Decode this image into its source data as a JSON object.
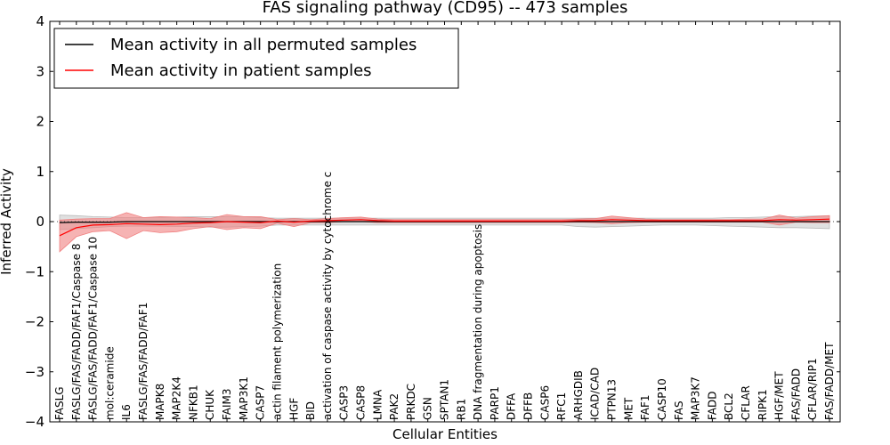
{
  "chart_data": {
    "type": "line",
    "title": "FAS signaling pathway (CD95) -- 473 samples",
    "xlabel": "Cellular Entities",
    "ylabel": "Inferred Activity",
    "ylim": [
      -4,
      4
    ],
    "yticks": [
      "4",
      "3",
      "2",
      "1",
      "0",
      "−1",
      "−2",
      "−3",
      "−4"
    ],
    "ytick_values": [
      4,
      3,
      2,
      1,
      0,
      -1,
      -2,
      -3,
      -4
    ],
    "legend_position": "top-left",
    "categories": [
      "FASLG",
      "FASLG/FAS/FADD/FAF1/Caspase 8",
      "FASLG/FAS/FADD/FAF1/Caspase 10",
      "mol:ceramide",
      "IL6",
      "FASLG/FAS/FADD/FAF1",
      "MAPK8",
      "MAP2K4",
      "NFKB1",
      "CHUK",
      "FAIM3",
      "MAP3K1",
      "CASP7",
      "actin filament polymerization",
      "HGF",
      "BID",
      "activation of caspase activity by cytochrome c",
      "CASP3",
      "CASP8",
      "LMNA",
      "PAK2",
      "PRKDC",
      "GSN",
      "SPTAN1",
      "RB1",
      "DNA fragmentation during apoptosis",
      "PARP1",
      "DFFA",
      "DFFB",
      "CASP6",
      "RFC1",
      "ARHGDIB",
      "ICAD/CAD",
      "PTPN13",
      "MET",
      "FAF1",
      "CASP10",
      "FAS",
      "MAP3K7",
      "FADD",
      "BCL2",
      "CFLAR",
      "RIPK1",
      "HGF/MET",
      "FAS/FADD",
      "CFLAR/RIP1",
      "FAS/FADD/MET"
    ],
    "series": [
      {
        "name": "Mean activity in all permuted samples",
        "color": "#000000",
        "band_color": "#bbbbbb",
        "values": [
          -0.02,
          -0.01,
          -0.01,
          -0.01,
          0,
          0,
          0,
          0,
          0,
          0,
          0,
          0,
          0,
          0,
          0,
          0,
          0,
          0,
          0,
          0,
          0,
          0,
          0,
          0,
          0,
          0,
          0,
          0,
          0,
          0,
          0,
          0,
          0,
          0,
          0,
          0,
          0,
          0,
          0,
          0,
          0,
          0,
          0,
          0,
          0,
          0,
          0
        ],
        "upper": [
          0.13,
          0.12,
          0.1,
          0.09,
          0.08,
          0.08,
          0.08,
          0.09,
          0.1,
          0.1,
          0.1,
          0.1,
          0.08,
          0.07,
          0.07,
          0.07,
          0.07,
          0.07,
          0.07,
          0.07,
          0.07,
          0.07,
          0.07,
          0.07,
          0.07,
          0.07,
          0.07,
          0.07,
          0.07,
          0.07,
          0.07,
          0.07,
          0.07,
          0.07,
          0.07,
          0.07,
          0.07,
          0.07,
          0.07,
          0.07,
          0.08,
          0.08,
          0.09,
          0.1,
          0.1,
          0.11,
          0.12
        ],
        "lower": [
          -0.16,
          -0.14,
          -0.12,
          -0.1,
          -0.09,
          -0.09,
          -0.09,
          -0.1,
          -0.1,
          -0.11,
          -0.11,
          -0.1,
          -0.09,
          -0.07,
          -0.07,
          -0.07,
          -0.07,
          -0.07,
          -0.07,
          -0.07,
          -0.07,
          -0.07,
          -0.07,
          -0.07,
          -0.07,
          -0.07,
          -0.07,
          -0.07,
          -0.07,
          -0.07,
          -0.07,
          -0.1,
          -0.11,
          -0.1,
          -0.09,
          -0.08,
          -0.07,
          -0.07,
          -0.07,
          -0.08,
          -0.09,
          -0.1,
          -0.11,
          -0.12,
          -0.12,
          -0.13,
          -0.14
        ]
      },
      {
        "name": "Mean activity in patient samples",
        "color": "#ff0000",
        "band_color": "#f08080",
        "values": [
          -0.28,
          -0.12,
          -0.07,
          -0.06,
          -0.04,
          -0.05,
          -0.06,
          -0.05,
          -0.03,
          -0.02,
          0,
          -0.01,
          -0.02,
          0.01,
          -0.01,
          0.01,
          0.02,
          0.03,
          0.04,
          0.02,
          0.01,
          0.01,
          0.01,
          0.01,
          0.01,
          0.01,
          0.01,
          0.01,
          0.01,
          0.01,
          0.01,
          0.02,
          0.02,
          0.04,
          0.03,
          0.02,
          0.02,
          0.02,
          0.02,
          0.02,
          0.02,
          0.02,
          0.02,
          0.04,
          0.03,
          0.04,
          0.05
        ],
        "upper": [
          0.03,
          0.05,
          0.06,
          0.06,
          0.18,
          0.08,
          0.1,
          0.09,
          0.08,
          0.06,
          0.14,
          0.1,
          0.1,
          0.04,
          0.06,
          0.04,
          0.06,
          0.08,
          0.09,
          0.05,
          0.04,
          0.04,
          0.04,
          0.04,
          0.04,
          0.04,
          0.04,
          0.04,
          0.04,
          0.04,
          0.04,
          0.05,
          0.06,
          0.11,
          0.08,
          0.05,
          0.04,
          0.04,
          0.04,
          0.04,
          0.04,
          0.05,
          0.05,
          0.13,
          0.07,
          0.1,
          0.12
        ],
        "lower": [
          -0.6,
          -0.3,
          -0.2,
          -0.18,
          -0.34,
          -0.18,
          -0.22,
          -0.2,
          -0.14,
          -0.1,
          -0.16,
          -0.12,
          -0.14,
          -0.03,
          -0.1,
          -0.02,
          -0.02,
          0,
          0,
          -0.02,
          -0.02,
          -0.02,
          -0.02,
          -0.02,
          -0.02,
          -0.02,
          -0.02,
          -0.02,
          -0.02,
          -0.02,
          -0.02,
          -0.01,
          -0.02,
          -0.04,
          -0.02,
          -0.01,
          -0.01,
          -0.01,
          -0.01,
          -0.01,
          -0.01,
          -0.01,
          -0.01,
          -0.07,
          -0.01,
          -0.02,
          -0.02
        ]
      }
    ]
  }
}
